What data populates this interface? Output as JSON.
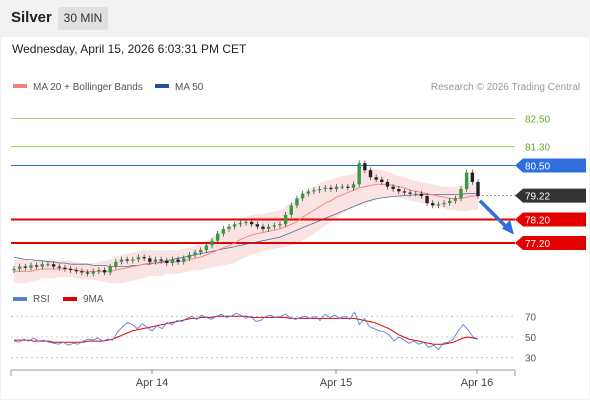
{
  "header": {
    "title": "Silver",
    "timeframe": "30 MIN"
  },
  "timestamp": "Wednesday, April 15, 2026 6:03:31 PM CET",
  "credit": "Research © 2026 Trading Central",
  "colors": {
    "bb": "#f08080",
    "ma50": "#2b4f8c",
    "rsi": "#5b7fd6",
    "rsi_ma": "#e00000",
    "blue_level": "#2f6fdc",
    "red_level": "#e50000",
    "green_level": "#8cc63f",
    "current": "#333333"
  },
  "chart_data": [
    {
      "type": "candlestick",
      "legend": [
        {
          "name": "MA 20 + Bollinger Bands",
          "color": "#f08080"
        },
        {
          "name": "MA 50",
          "color": "#2b4f8c"
        }
      ],
      "x_ticks": [
        "Apr 14",
        "Apr 15",
        "Apr 16"
      ],
      "ylim": [
        75.5,
        83.5
      ],
      "levels": [
        {
          "value": 82.5,
          "label": "82.50",
          "style": "green"
        },
        {
          "value": 81.3,
          "label": "81.30",
          "style": "green"
        },
        {
          "value": 80.5,
          "label": "80.50",
          "style": "blue"
        },
        {
          "value": 79.22,
          "label": "79.22",
          "style": "current"
        },
        {
          "value": 78.2,
          "label": "78.20",
          "style": "red"
        },
        {
          "value": 77.2,
          "label": "77.20",
          "style": "red"
        }
      ],
      "close": [
        76.1,
        76.2,
        76.15,
        76.25,
        76.2,
        76.3,
        76.3,
        76.2,
        76.15,
        76.1,
        76.05,
        76.0,
        75.95,
        75.9,
        76.0,
        76.05,
        75.95,
        76.2,
        76.4,
        76.5,
        76.45,
        76.5,
        76.6,
        76.55,
        76.4,
        76.5,
        76.45,
        76.35,
        76.5,
        76.4,
        76.55,
        76.7,
        76.8,
        76.9,
        77.1,
        77.3,
        77.6,
        77.8,
        77.9,
        78.0,
        78.05,
        78.1,
        78.0,
        77.9,
        77.8,
        77.9,
        77.95,
        78.0,
        78.4,
        78.8,
        79.1,
        79.3,
        79.4,
        79.45,
        79.5,
        79.55,
        79.5,
        79.6,
        79.6,
        79.55,
        79.7,
        80.6,
        80.3,
        80.0,
        79.9,
        79.8,
        79.6,
        79.5,
        79.4,
        79.35,
        79.3,
        79.3,
        79.2,
        78.9,
        78.8,
        78.85,
        78.9,
        79.0,
        79.1,
        79.5,
        80.2,
        79.8,
        79.2
      ],
      "ma20": [
        76.0,
        76.0,
        76.0,
        76.0,
        76.05,
        76.1,
        76.1,
        76.1,
        76.1,
        76.1,
        76.1,
        76.05,
        76.0,
        76.0,
        76.0,
        76.0,
        76.0,
        76.0,
        76.05,
        76.1,
        76.15,
        76.2,
        76.25,
        76.3,
        76.35,
        76.35,
        76.35,
        76.4,
        76.4,
        76.4,
        76.45,
        76.5,
        76.55,
        76.6,
        76.7,
        76.8,
        76.9,
        77.0,
        77.1,
        77.2,
        77.35,
        77.45,
        77.55,
        77.6,
        77.65,
        77.7,
        77.75,
        77.8,
        77.9,
        78.0,
        78.1,
        78.3,
        78.45,
        78.6,
        78.75,
        78.9,
        79.0,
        79.15,
        79.25,
        79.35,
        79.45,
        79.55,
        79.6,
        79.65,
        79.7,
        79.7,
        79.7,
        79.65,
        79.6,
        79.55,
        79.45,
        79.4,
        79.35,
        79.3,
        79.25,
        79.2,
        79.15,
        79.1,
        79.1,
        79.1,
        79.15,
        79.2,
        79.2
      ],
      "ma50": [
        76.6,
        76.55,
        76.5,
        76.5,
        76.45,
        76.45,
        76.4,
        76.4,
        76.35,
        76.35,
        76.3,
        76.3,
        76.3,
        76.3,
        76.25,
        76.25,
        76.25,
        76.2,
        76.2,
        76.2,
        76.2,
        76.25,
        76.25,
        76.3,
        76.3,
        76.35,
        76.4,
        76.45,
        76.5,
        76.55,
        76.6,
        76.65,
        76.7,
        76.75,
        76.8,
        76.85,
        76.9,
        76.95,
        77.0,
        77.05,
        77.1,
        77.15,
        77.2,
        77.25,
        77.3,
        77.35,
        77.4,
        77.45,
        77.55,
        77.65,
        77.75,
        77.85,
        77.95,
        78.05,
        78.15,
        78.25,
        78.35,
        78.45,
        78.55,
        78.65,
        78.75,
        78.85,
        78.95,
        79.02,
        79.08,
        79.12,
        79.15,
        79.18,
        79.2,
        79.22,
        79.24,
        79.25,
        79.26,
        79.26,
        79.26,
        79.26,
        79.26,
        79.26,
        79.27,
        79.28,
        79.3,
        79.3,
        79.3
      ],
      "bb_half_width": [
        0.5,
        0.5,
        0.5,
        0.45,
        0.45,
        0.4,
        0.4,
        0.4,
        0.35,
        0.35,
        0.35,
        0.35,
        0.35,
        0.35,
        0.35,
        0.4,
        0.45,
        0.5,
        0.55,
        0.6,
        0.6,
        0.6,
        0.6,
        0.6,
        0.55,
        0.55,
        0.55,
        0.5,
        0.5,
        0.5,
        0.5,
        0.5,
        0.5,
        0.55,
        0.6,
        0.65,
        0.7,
        0.75,
        0.8,
        0.85,
        0.85,
        0.85,
        0.85,
        0.85,
        0.8,
        0.8,
        0.8,
        0.8,
        0.85,
        0.9,
        0.95,
        1.0,
        1.0,
        1.0,
        1.0,
        0.95,
        0.9,
        0.85,
        0.8,
        0.75,
        0.7,
        0.75,
        0.75,
        0.7,
        0.65,
        0.6,
        0.55,
        0.5,
        0.45,
        0.45,
        0.45,
        0.45,
        0.45,
        0.45,
        0.45,
        0.45,
        0.45,
        0.5,
        0.5,
        0.55,
        0.6,
        0.6,
        0.6
      ]
    },
    {
      "type": "line",
      "legend": [
        {
          "name": "RSI",
          "color": "#5b7fd6"
        },
        {
          "name": "9MA",
          "color": "#e00000"
        }
      ],
      "ylim": [
        20,
        80
      ],
      "y_ticks": [
        70,
        50,
        30
      ],
      "series": [
        {
          "name": "RSI",
          "values": [
            46,
            45,
            48,
            46,
            49,
            46,
            47,
            45,
            44,
            43,
            45,
            42,
            44,
            43,
            46,
            48,
            47,
            49,
            46,
            48,
            47,
            55,
            60,
            64,
            62,
            58,
            63,
            59,
            56,
            61,
            58,
            64,
            62,
            66,
            65,
            68,
            70,
            67,
            71,
            69,
            67,
            70,
            72,
            69,
            70,
            73,
            71,
            68,
            70,
            65,
            66,
            70,
            71,
            69,
            70,
            72,
            69,
            67,
            69,
            70,
            68,
            70,
            66,
            72,
            69,
            71,
            68,
            70,
            67,
            74,
            62,
            68,
            60,
            58,
            56,
            55,
            52,
            46,
            50,
            47,
            44,
            46,
            43,
            45,
            40,
            42,
            38,
            44,
            45,
            48,
            56,
            62,
            57,
            50,
            48
          ]
        },
        {
          "name": "9MA",
          "values": [
            47,
            47,
            47,
            47,
            46,
            46,
            46,
            46,
            45,
            45,
            45,
            45,
            45,
            45,
            45,
            46,
            46,
            46,
            46,
            47,
            48,
            50,
            52,
            54,
            56,
            57,
            58,
            59,
            60,
            61,
            62,
            63,
            64,
            65,
            66,
            67,
            68,
            68,
            69,
            69,
            69,
            70,
            70,
            70,
            70,
            70,
            70,
            70,
            69,
            69,
            69,
            69,
            69,
            69,
            69,
            69,
            68,
            68,
            68,
            68,
            68,
            68,
            68,
            68,
            68,
            68,
            68,
            68,
            68,
            68,
            67,
            66,
            65,
            64,
            62,
            60,
            58,
            55,
            52,
            50,
            48,
            47,
            46,
            45,
            44,
            43,
            43,
            43,
            44,
            45,
            47,
            49,
            50,
            49,
            48
          ]
        }
      ]
    }
  ]
}
